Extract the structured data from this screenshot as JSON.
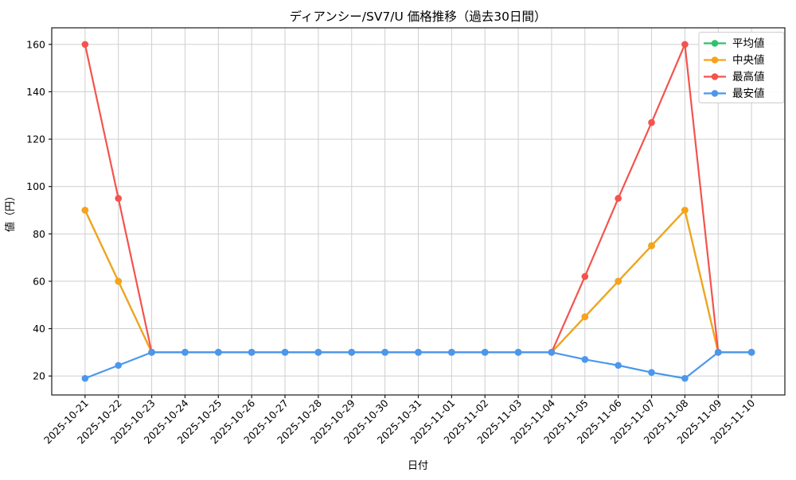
{
  "chart_data": {
    "type": "line",
    "title": "ディアンシー/SV7/U 価格推移（過去30日間）",
    "xlabel": "日付",
    "ylabel": "値（円）",
    "x": [
      "2025-10-21",
      "2025-10-22",
      "2025-10-23",
      "2025-10-24",
      "2025-10-25",
      "2025-10-26",
      "2025-10-27",
      "2025-10-28",
      "2025-10-29",
      "2025-10-30",
      "2025-10-31",
      "2025-11-01",
      "2025-11-02",
      "2025-11-03",
      "2025-11-04",
      "2025-11-05",
      "2025-11-06",
      "2025-11-07",
      "2025-11-08",
      "2025-11-09",
      "2025-11-10"
    ],
    "series": [
      {
        "name": "平均値",
        "slug": "average",
        "color": "#2dc26b",
        "values": [
          90,
          60,
          30,
          30,
          30,
          30,
          30,
          30,
          30,
          30,
          30,
          30,
          30,
          30,
          30,
          45,
          60,
          75,
          90,
          30,
          30
        ]
      },
      {
        "name": "中央値",
        "slug": "median",
        "color": "#f9a21a",
        "values": [
          90,
          60,
          30,
          30,
          30,
          30,
          30,
          30,
          30,
          30,
          30,
          30,
          30,
          30,
          30,
          45,
          60,
          75,
          90,
          30,
          30
        ]
      },
      {
        "name": "最高値",
        "slug": "max",
        "color": "#f4534e",
        "values": [
          160,
          95,
          30,
          30,
          30,
          30,
          30,
          30,
          30,
          30,
          30,
          30,
          30,
          30,
          30,
          62,
          95,
          127,
          160,
          30,
          30
        ]
      },
      {
        "name": "最安値",
        "slug": "min",
        "color": "#4a97ee",
        "values": [
          19,
          24.5,
          30,
          30,
          30,
          30,
          30,
          30,
          30,
          30,
          30,
          30,
          30,
          30,
          30,
          27,
          24.5,
          21.5,
          19,
          30,
          30
        ]
      }
    ],
    "yticks": [
      20,
      40,
      60,
      80,
      100,
      120,
      140,
      160
    ],
    "ylim": [
      12,
      167
    ],
    "grid": true,
    "legend_position": "upper right",
    "colors": {
      "grid": "#cfcfcf",
      "spine": "#1a1a1a",
      "legend_border": "#cccccc",
      "background": "#ffffff"
    }
  }
}
